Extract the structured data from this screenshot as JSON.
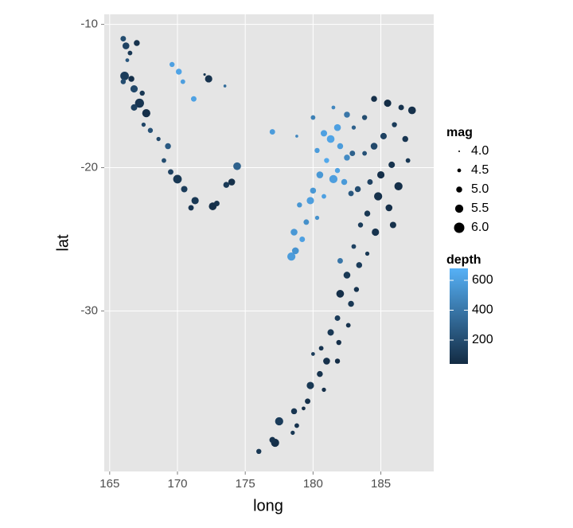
{
  "chart_data": {
    "type": "scatter",
    "x_label": "long",
    "y_label": "lat",
    "size_title": "mag",
    "color_title": "depth",
    "xlim": [
      164.6,
      188.9
    ],
    "ylim": [
      -41.2,
      -9.3
    ],
    "xticks": [
      165,
      170,
      175,
      180,
      185
    ],
    "yticks": [
      -10,
      -20,
      -30
    ],
    "grid": true,
    "mag_lim": [
      4,
      6
    ],
    "mag_ticks": [
      {
        "value": 4,
        "label": "4.0"
      },
      {
        "value": 4.5,
        "label": "4.5"
      },
      {
        "value": 5,
        "label": "5.0"
      },
      {
        "value": 5.5,
        "label": "5.5"
      },
      {
        "value": 6,
        "label": "6.0"
      }
    ],
    "depth_lim": [
      40,
      680
    ],
    "depth_ticks": [
      200,
      400,
      600
    ],
    "depth_colors": [
      "#132B43",
      "#56B1F7"
    ],
    "x": [
      166.0,
      166.2,
      166.5,
      166.3,
      167.0,
      166.1,
      166.6,
      166.0,
      166.8,
      167.4,
      167.2,
      166.8,
      167.7,
      167.5,
      168.0,
      168.6,
      169.3,
      169.0,
      169.5,
      170.0,
      170.5,
      171.0,
      171.3,
      172.6,
      172.9,
      173.6,
      174.0,
      174.4,
      169.6,
      170.1,
      170.4,
      171.2,
      172.3,
      173.5,
      172.0,
      177.0,
      180.8,
      181.3,
      182.0,
      181.0,
      180.5,
      181.5,
      182.3,
      181.8,
      180.0,
      179.8,
      180.8,
      179.0,
      178.6,
      179.2,
      178.4,
      178.7,
      180.3,
      180.0,
      181.5,
      181.8,
      182.5,
      179.5,
      178.8,
      180.3,
      184.5,
      185.5,
      186.5,
      187.3,
      186.0,
      185.2,
      184.5,
      183.8,
      186.8,
      187.0,
      185.8,
      185.0,
      184.2,
      183.3,
      184.8,
      185.6,
      184.0,
      183.5,
      184.6,
      183.0,
      182.8,
      183.0,
      182.5,
      183.8,
      186.3,
      185.9,
      182.9,
      184.0,
      183.4,
      182.5,
      183.2,
      182.0,
      182.8,
      181.8,
      182.6,
      181.3,
      181.9,
      180.6,
      181.0,
      180.0,
      181.8,
      180.5,
      179.8,
      180.8,
      179.6,
      178.6,
      179.3,
      178.8,
      177.5,
      177.2,
      177.0,
      176.0,
      178.5,
      182.0
    ],
    "y": [
      -11.0,
      -11.5,
      -12.0,
      -12.5,
      -11.3,
      -13.6,
      -13.8,
      -14.0,
      -14.5,
      -14.8,
      -15.5,
      -15.8,
      -16.2,
      -17.0,
      -17.4,
      -18.0,
      -18.5,
      -19.5,
      -20.3,
      -20.8,
      -21.5,
      -22.8,
      -22.3,
      -22.7,
      -22.5,
      -21.2,
      -21.0,
      -19.9,
      -12.8,
      -13.3,
      -14.0,
      -15.2,
      -13.8,
      -14.3,
      -13.5,
      -17.5,
      -17.6,
      -18.0,
      -18.5,
      -19.5,
      -20.5,
      -20.8,
      -21.0,
      -20.2,
      -21.6,
      -22.3,
      -22.0,
      -22.6,
      -24.5,
      -25.0,
      -26.2,
      -25.8,
      -23.5,
      -16.5,
      -15.8,
      -17.2,
      -19.3,
      -23.8,
      -17.8,
      -18.8,
      -15.2,
      -15.5,
      -15.8,
      -16.0,
      -17.0,
      -17.8,
      -18.5,
      -19.0,
      -18.0,
      -19.5,
      -19.8,
      -20.5,
      -21.0,
      -21.5,
      -22.0,
      -22.8,
      -23.2,
      -24.0,
      -24.5,
      -25.5,
      -21.8,
      -17.2,
      -16.3,
      -16.5,
      -21.3,
      -24.0,
      -19.0,
      -26.0,
      -26.8,
      -27.5,
      -28.5,
      -28.8,
      -29.5,
      -30.5,
      -31.0,
      -31.5,
      -32.2,
      -32.6,
      -33.5,
      -33.0,
      -33.5,
      -34.4,
      -35.2,
      -35.5,
      -36.3,
      -37.0,
      -36.8,
      -38.0,
      -37.7,
      -39.2,
      -39.0,
      -39.8,
      -38.5,
      -26.5
    ],
    "mag": [
      4.9,
      5.2,
      4.7,
      4.5,
      5.0,
      5.6,
      5.0,
      4.8,
      5.3,
      4.8,
      5.7,
      5.1,
      5.5,
      4.6,
      4.8,
      4.6,
      5.0,
      4.7,
      4.9,
      5.6,
      5.1,
      4.9,
      5.3,
      5.4,
      4.9,
      5.0,
      5.2,
      5.4,
      4.8,
      5.0,
      4.7,
      4.9,
      5.3,
      4.3,
      4.2,
      4.9,
      5.1,
      5.4,
      5.0,
      4.8,
      5.2,
      5.5,
      5.0,
      4.8,
      5.0,
      5.3,
      4.7,
      4.8,
      5.2,
      4.9,
      5.5,
      5.2,
      4.6,
      4.7,
      4.5,
      5.2,
      5.0,
      4.9,
      4.3,
      4.8,
      5.0,
      5.3,
      4.9,
      5.4,
      4.8,
      5.1,
      5.2,
      4.7,
      5.0,
      4.7,
      5.1,
      5.3,
      4.9,
      5.0,
      5.5,
      5.2,
      5.0,
      4.8,
      5.3,
      4.7,
      4.9,
      4.6,
      5.0,
      4.8,
      5.5,
      5.1,
      4.9,
      4.6,
      5.0,
      5.2,
      4.8,
      5.4,
      5.0,
      4.9,
      4.7,
      5.1,
      4.8,
      4.7,
      5.2,
      4.5,
      4.8,
      5.0,
      5.3,
      4.6,
      4.9,
      5.0,
      4.5,
      4.7,
      5.5,
      5.5,
      5.0,
      4.8,
      4.6,
      4.9
    ],
    "depth": [
      200,
      150,
      100,
      250,
      80,
      120,
      60,
      200,
      180,
      100,
      90,
      140,
      60,
      170,
      220,
      180,
      260,
      200,
      150,
      100,
      120,
      90,
      100,
      60,
      80,
      110,
      70,
      300,
      600,
      620,
      590,
      610,
      80,
      350,
      100,
      580,
      600,
      620,
      580,
      640,
      560,
      590,
      570,
      610,
      560,
      590,
      600,
      550,
      560,
      600,
      580,
      540,
      530,
      450,
      480,
      600,
      500,
      520,
      480,
      580,
      60,
      50,
      80,
      70,
      120,
      150,
      180,
      220,
      90,
      100,
      80,
      60,
      150,
      200,
      70,
      60,
      100,
      120,
      80,
      150,
      250,
      300,
      400,
      200,
      60,
      70,
      300,
      100,
      120,
      100,
      80,
      60,
      100,
      120,
      80,
      100,
      60,
      90,
      70,
      120,
      50,
      80,
      100,
      60,
      70,
      90,
      60,
      80,
      120,
      60,
      80,
      100,
      100,
      400
    ]
  }
}
